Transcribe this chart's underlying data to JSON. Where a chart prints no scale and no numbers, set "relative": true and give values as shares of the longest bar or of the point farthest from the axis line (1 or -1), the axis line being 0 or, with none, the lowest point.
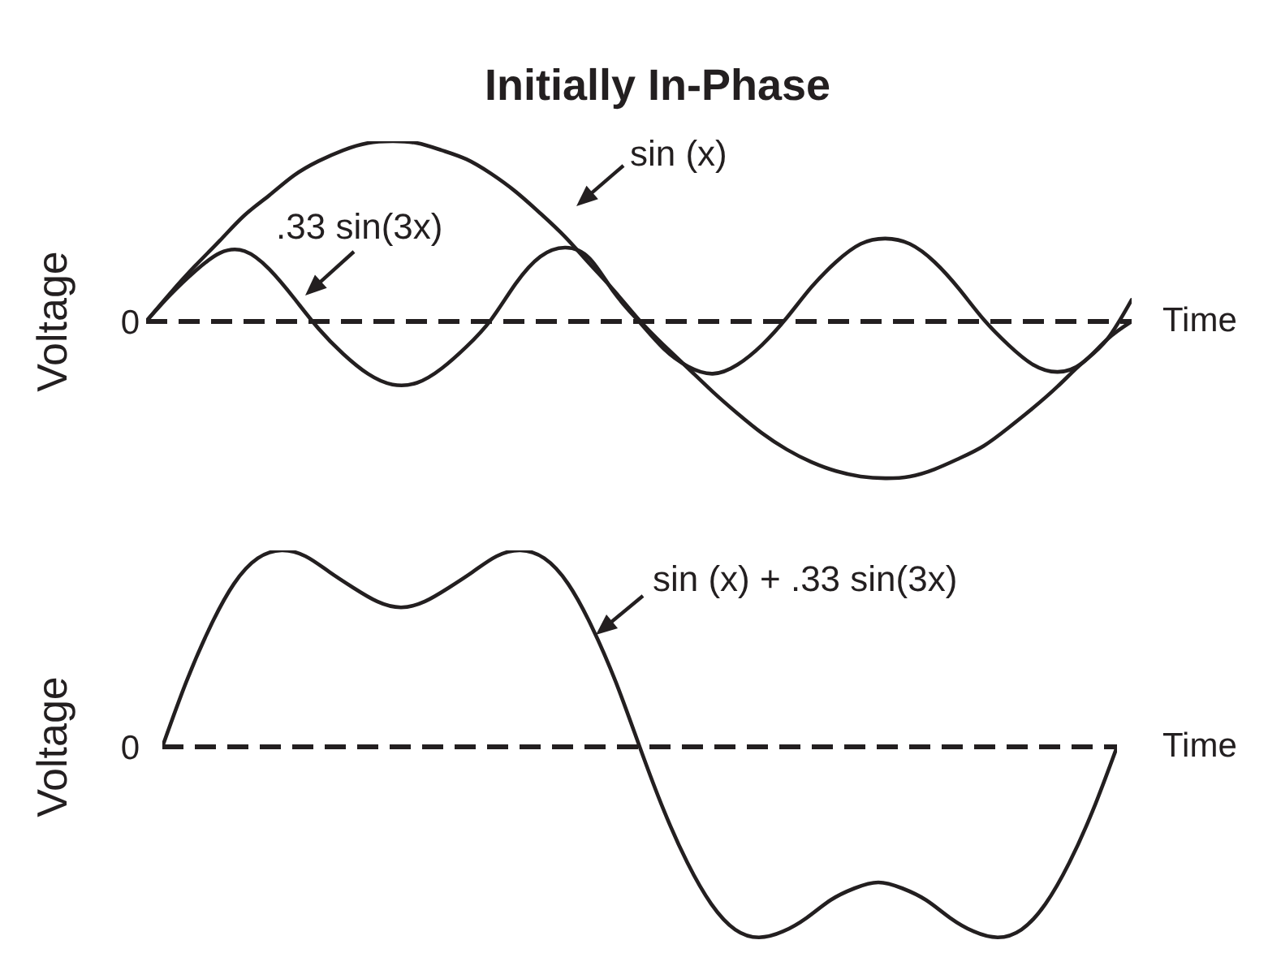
{
  "chart_data": [
    {
      "type": "line",
      "title": "Initially In-Phase",
      "xlabel": "Time",
      "ylabel": "Voltage",
      "relative": true,
      "marker": "none",
      "categories": [
        null,
        null,
        null,
        null,
        null,
        null,
        null,
        null,
        null,
        null,
        null,
        null,
        null,
        null,
        null,
        null,
        null,
        null,
        null,
        null,
        null,
        null,
        null,
        null,
        null,
        null,
        null,
        null,
        null,
        null,
        null,
        null,
        null,
        null,
        null,
        null,
        null,
        null,
        null,
        null,
        null
      ],
      "series": [
        {
          "name": "sin (x)",
          "color": "#231f20",
          "values": [
            0,
            0.16,
            0.31,
            0.45,
            0.59,
            0.7,
            0.81,
            0.89,
            0.95,
            0.99,
            1,
            0.99,
            0.95,
            0.9,
            0.82,
            0.72,
            0.6,
            0.47,
            0.32,
            0.17,
            0.01,
            -0.13,
            -0.26,
            -0.39,
            -0.51,
            -0.62,
            -0.71,
            -0.78,
            -0.83,
            -0.86,
            -0.87,
            -0.86,
            -0.82,
            -0.76,
            -0.69,
            -0.59,
            -0.48,
            -0.36,
            -0.23,
            -0.1,
            0.12
          ]
        },
        {
          "name": ".33 sin(3x)",
          "color": "#231f20",
          "values": [
            0,
            0.15,
            0.28,
            0.38,
            0.39,
            0.29,
            0.13,
            -0.04,
            -0.18,
            -0.29,
            -0.35,
            -0.34,
            -0.26,
            -0.14,
            0.01,
            0.21,
            0.36,
            0.41,
            0.35,
            0.16,
            0,
            -0.15,
            -0.25,
            -0.29,
            -0.24,
            -0.13,
            0.02,
            0.19,
            0.33,
            0.43,
            0.46,
            0.43,
            0.33,
            0.18,
            0.01,
            -0.13,
            -0.24,
            -0.28,
            -0.23,
            -0.1,
            0
          ]
        }
      ],
      "ref_lines": [
        {
          "axis": "y",
          "value": 0,
          "label": "0",
          "line_style": "dashed",
          "color": "#231f20"
        }
      ]
    },
    {
      "type": "line",
      "xlabel": "Time",
      "ylabel": "Voltage",
      "relative": true,
      "marker": "none",
      "categories": [
        null,
        null,
        null,
        null,
        null,
        null,
        null,
        null,
        null,
        null,
        null,
        null,
        null,
        null,
        null,
        null,
        null,
        null,
        null,
        null,
        null,
        null,
        null,
        null,
        null,
        null,
        null,
        null,
        null,
        null,
        null,
        null,
        null,
        null,
        null,
        null,
        null,
        null,
        null,
        null,
        null
      ],
      "series": [
        {
          "name": "sin (x) + .33 sin(3x)",
          "color": "#231f20",
          "values": [
            0,
            0.33,
            0.61,
            0.83,
            0.96,
            1,
            0.97,
            0.89,
            0.81,
            0.74,
            0.71,
            0.74,
            0.81,
            0.89,
            0.97,
            1,
            0.96,
            0.83,
            0.61,
            0.33,
            0,
            -0.32,
            -0.59,
            -0.8,
            -0.93,
            -0.97,
            -0.94,
            -0.87,
            -0.78,
            -0.72,
            -0.69,
            -0.72,
            -0.78,
            -0.87,
            -0.94,
            -0.97,
            -0.93,
            -0.8,
            -0.59,
            -0.32,
            0
          ]
        }
      ],
      "ref_lines": [
        {
          "axis": "y",
          "value": 0,
          "label": "0",
          "line_style": "dashed",
          "color": "#231f20"
        }
      ]
    }
  ]
}
